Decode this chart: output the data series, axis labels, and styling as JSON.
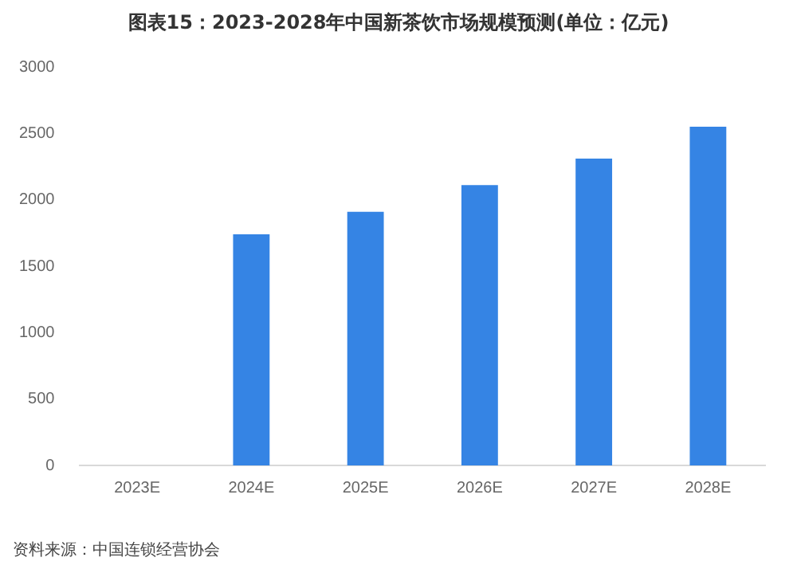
{
  "chart_data": {
    "type": "bar",
    "title": "图表15：2023-2028年中国新茶饮市场规模预测(单位：亿元)",
    "categories": [
      "2023E",
      "2024E",
      "2025E",
      "2026E",
      "2027E",
      "2028E"
    ],
    "values": [
      null,
      1740,
      1910,
      2110,
      2310,
      2550
    ],
    "color": "#3584e4",
    "ylim": [
      0,
      3000
    ],
    "yticks": [
      0,
      500,
      1000,
      1500,
      2000,
      2500,
      3000
    ],
    "grid": false,
    "legend": false,
    "annotations": [
      "资料来源：中国连锁经营协会"
    ]
  }
}
